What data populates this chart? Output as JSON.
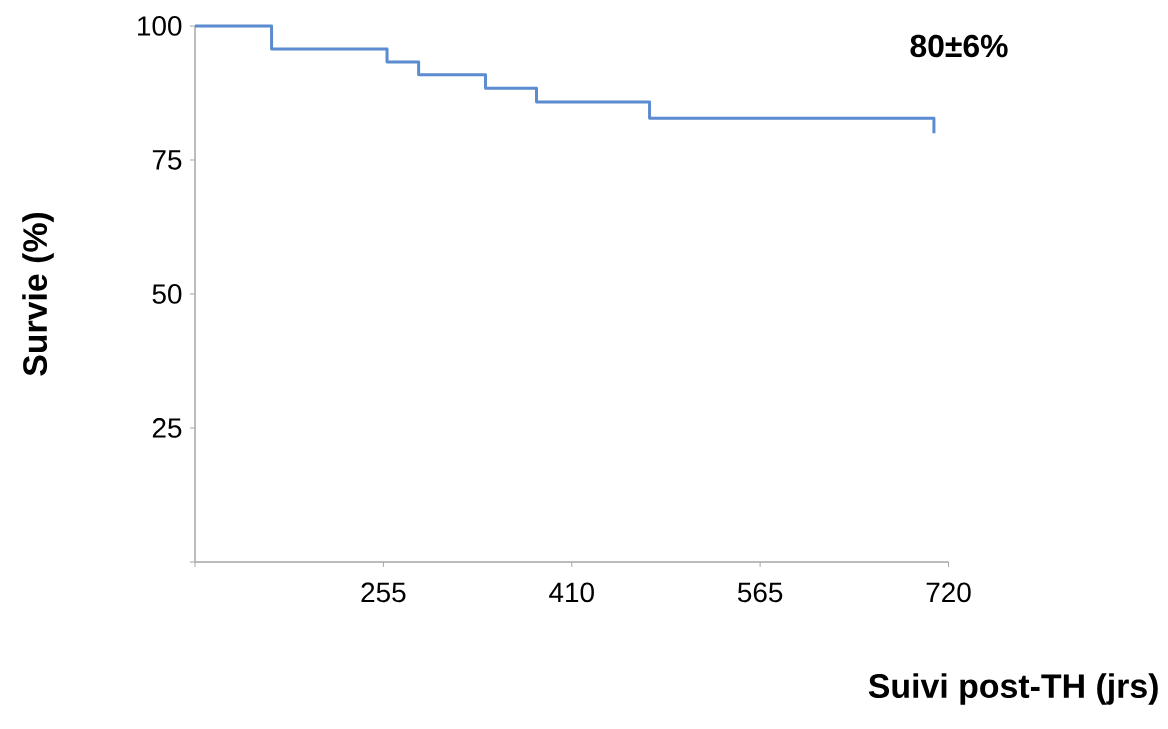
{
  "chart_data": {
    "type": "step",
    "xlabel": "Suivi post-TH (jrs)",
    "ylabel": "Survie (%)",
    "annotations": [
      "80±6%"
    ],
    "x": [
      100,
      163,
      258,
      284,
      339,
      381,
      474,
      708
    ],
    "values": [
      100,
      95.7,
      93.3,
      90.9,
      88.4,
      85.8,
      82.8,
      80
    ],
    "color": "#5b8bd0",
    "xlim": [
      100,
      720
    ],
    "ylim": [
      0,
      100
    ],
    "xticks": [
      {
        "value": 100,
        "label": null
      },
      255,
      410,
      565,
      720
    ],
    "yticks": [
      {
        "value": 0,
        "label": null
      },
      25,
      50,
      75,
      100
    ]
  }
}
